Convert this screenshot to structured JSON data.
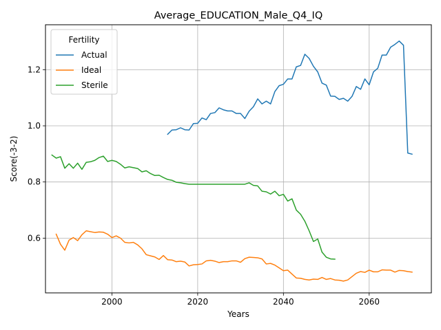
{
  "chart_data": {
    "type": "line",
    "title": "Average_EDUCATION_Male_Q4_IQ",
    "xlabel": "Years",
    "ylabel": "Score(-3-2)",
    "xlim": [
      1984.5,
      2074.5
    ],
    "ylim": [
      0.405,
      1.36
    ],
    "xticks": [
      2000,
      2020,
      2040,
      2060
    ],
    "yticks": [
      0.6,
      0.8,
      1.0,
      1.2
    ],
    "grid": true,
    "legend": {
      "title": "Fertility",
      "placement": "top-left"
    },
    "colors": {
      "Actual": "#1f77b4",
      "Ideal": "#ff7f0e",
      "Sterile": "#2ca02c"
    },
    "series": [
      {
        "name": "Actual",
        "x": [
          2013,
          2014,
          2015,
          2016,
          2017,
          2018,
          2019,
          2020,
          2021,
          2022,
          2023,
          2024,
          2025,
          2026,
          2027,
          2028,
          2029,
          2030,
          2031,
          2032,
          2033,
          2034,
          2035,
          2036,
          2037,
          2038,
          2039,
          2040,
          2041,
          2042,
          2043,
          2044,
          2045,
          2046,
          2047,
          2048,
          2049,
          2050,
          2051,
          2052,
          2053,
          2054,
          2055,
          2056,
          2057,
          2058,
          2059,
          2060,
          2061,
          2062,
          2063,
          2064,
          2065,
          2066,
          2067,
          2068,
          2069,
          2070
        ],
        "y": [
          0.97,
          0.985,
          0.986,
          0.993,
          0.986,
          0.985,
          1.008,
          1.009,
          1.028,
          1.022,
          1.044,
          1.047,
          1.064,
          1.057,
          1.053,
          1.053,
          1.044,
          1.044,
          1.026,
          1.052,
          1.068,
          1.096,
          1.078,
          1.088,
          1.078,
          1.122,
          1.143,
          1.148,
          1.167,
          1.167,
          1.21,
          1.215,
          1.255,
          1.24,
          1.212,
          1.192,
          1.152,
          1.145,
          1.106,
          1.105,
          1.094,
          1.098,
          1.088,
          1.105,
          1.14,
          1.13,
          1.167,
          1.146,
          1.192,
          1.205,
          1.252,
          1.252,
          1.28,
          1.29,
          1.302,
          1.287,
          0.903,
          0.899
        ]
      },
      {
        "name": "Ideal",
        "x": [
          1987,
          1988,
          1989,
          1990,
          1991,
          1992,
          1993,
          1994,
          1995,
          1996,
          1997,
          1998,
          1999,
          2000,
          2001,
          2002,
          2003,
          2004,
          2005,
          2006,
          2007,
          2008,
          2009,
          2010,
          2011,
          2012,
          2013,
          2014,
          2015,
          2016,
          2017,
          2018,
          2019,
          2020,
          2021,
          2022,
          2023,
          2024,
          2025,
          2026,
          2027,
          2028,
          2029,
          2030,
          2031,
          2032,
          2033,
          2034,
          2035,
          2036,
          2037,
          2038,
          2039,
          2040,
          2041,
          2042,
          2043,
          2044,
          2045,
          2046,
          2047,
          2048,
          2049,
          2050,
          2051,
          2052,
          2053,
          2054,
          2055,
          2056,
          2057,
          2058,
          2059,
          2060,
          2061,
          2062,
          2063,
          2064,
          2065,
          2066,
          2067,
          2068,
          2069,
          2070
        ],
        "y": [
          0.614,
          0.578,
          0.557,
          0.593,
          0.602,
          0.591,
          0.612,
          0.626,
          0.623,
          0.62,
          0.622,
          0.621,
          0.614,
          0.602,
          0.608,
          0.6,
          0.585,
          0.583,
          0.585,
          0.576,
          0.562,
          0.541,
          0.537,
          0.533,
          0.524,
          0.538,
          0.523,
          0.522,
          0.516,
          0.518,
          0.515,
          0.501,
          0.505,
          0.506,
          0.508,
          0.519,
          0.521,
          0.518,
          0.513,
          0.516,
          0.516,
          0.519,
          0.519,
          0.514,
          0.527,
          0.532,
          0.531,
          0.53,
          0.526,
          0.508,
          0.51,
          0.504,
          0.494,
          0.484,
          0.486,
          0.472,
          0.458,
          0.457,
          0.453,
          0.451,
          0.454,
          0.453,
          0.46,
          0.453,
          0.456,
          0.451,
          0.45,
          0.447,
          0.451,
          0.463,
          0.475,
          0.481,
          0.478,
          0.486,
          0.48,
          0.48,
          0.487,
          0.486,
          0.486,
          0.479,
          0.485,
          0.484,
          0.481,
          0.479
        ]
      },
      {
        "name": "Sterile",
        "x": [
          1986,
          1987,
          1988,
          1989,
          1990,
          1991,
          1992,
          1993,
          1994,
          1995,
          1996,
          1997,
          1998,
          1999,
          2000,
          2001,
          2002,
          2003,
          2004,
          2005,
          2006,
          2007,
          2008,
          2009,
          2010,
          2011,
          2012,
          2013,
          2014,
          2015,
          2016,
          2017,
          2018,
          2019,
          2020,
          2021,
          2022,
          2023,
          2024,
          2025,
          2026,
          2027,
          2028,
          2029,
          2030,
          2031,
          2032,
          2033,
          2034,
          2035,
          2036,
          2037,
          2038,
          2039,
          2040,
          2041,
          2042,
          2043,
          2044,
          2045,
          2046,
          2047,
          2048,
          2049,
          2050,
          2051,
          2052
        ],
        "y": [
          0.896,
          0.885,
          0.89,
          0.849,
          0.865,
          0.849,
          0.867,
          0.845,
          0.87,
          0.872,
          0.877,
          0.887,
          0.892,
          0.873,
          0.877,
          0.873,
          0.863,
          0.85,
          0.854,
          0.851,
          0.848,
          0.836,
          0.84,
          0.83,
          0.823,
          0.824,
          0.816,
          0.809,
          0.806,
          0.799,
          0.797,
          0.794,
          0.792,
          0.792,
          0.792,
          0.792,
          0.792,
          0.792,
          0.792,
          0.792,
          0.792,
          0.792,
          0.792,
          0.792,
          0.792,
          0.792,
          0.797,
          0.788,
          0.786,
          0.767,
          0.765,
          0.757,
          0.767,
          0.751,
          0.756,
          0.732,
          0.74,
          0.7,
          0.685,
          0.66,
          0.626,
          0.588,
          0.597,
          0.55,
          0.532,
          0.526,
          0.525
        ]
      }
    ]
  }
}
